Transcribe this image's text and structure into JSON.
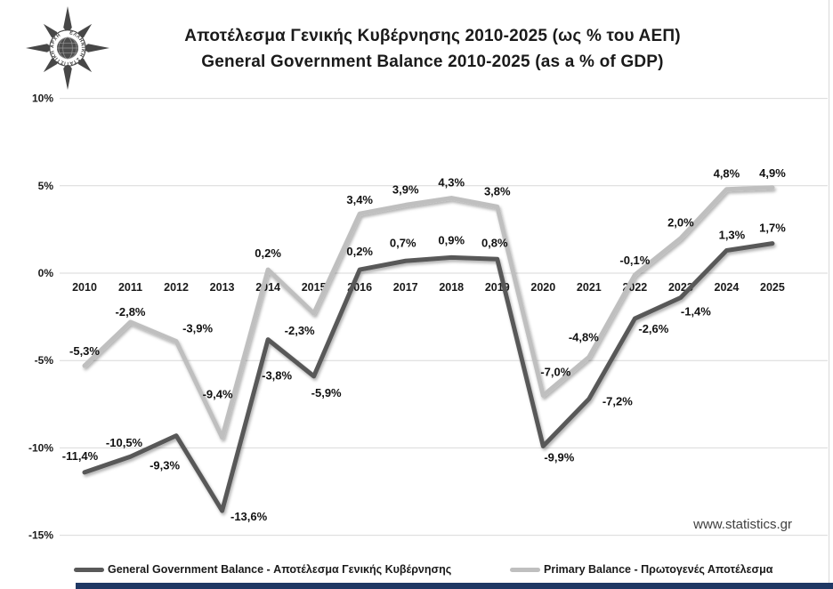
{
  "logo": {
    "ring_text": "ΕΛΛΗΝΙΚΗ ΣΤΑΤΙΣΤΙΚΗ ΑΡΧΗ"
  },
  "title": {
    "line1": "Αποτέλεσμα Γενικής Κυβέρνησης 2010-2025 (ως % του ΑΕΠ)",
    "line2": "General Government Balance 2010-2025 (as a % of GDP)"
  },
  "watermark": "www.statistics.gr",
  "chart_data": {
    "type": "line",
    "title": "Αποτέλεσμα Γενικής Κυβέρνησης 2010-2025 (ως % του ΑΕΠ) — General Government Balance 2010-2025 (as a % of GDP)",
    "categories": [
      "2010",
      "2011",
      "2012",
      "2013",
      "2014",
      "2015",
      "2016",
      "2017",
      "2018",
      "2019",
      "2020",
      "2021",
      "2022",
      "2023",
      "2024",
      "2025"
    ],
    "series": [
      {
        "name": "General Government Balance - Αποτέλεσμα Γενικής Κυβέρνησης",
        "color": "#595959",
        "values": [
          -11.4,
          -10.5,
          -9.3,
          -13.6,
          -3.8,
          -5.9,
          0.2,
          0.7,
          0.9,
          0.8,
          -9.9,
          -7.2,
          -2.6,
          -1.4,
          1.3,
          1.7
        ],
        "labels": [
          "-11,4%",
          "-10,5%",
          "-9,3%",
          "-13,6%",
          "-3,8%",
          "-5,9%",
          "0,2%",
          "0,7%",
          "0,9%",
          "0,8%",
          "-9,9%",
          "-7,2%",
          "-2,6%",
          "-1,4%",
          "1,3%",
          "1,7%"
        ]
      },
      {
        "name": "Primary Balance - Πρωτογενές Αποτέλεσμα",
        "color": "#BFBFBF",
        "values": [
          -5.3,
          -2.8,
          -3.9,
          -9.4,
          0.2,
          -2.3,
          3.4,
          3.9,
          4.3,
          3.8,
          -7.0,
          -4.8,
          -0.1,
          2.0,
          4.8,
          4.9
        ],
        "labels": [
          "-5,3%",
          "-2,8%",
          "-3,9%",
          "-9,4%",
          "0,2%",
          "-2,3%",
          "3,4%",
          "3,9%",
          "4,3%",
          "3,8%",
          "-7,0%",
          "-4,8%",
          "-0,1%",
          "2,0%",
          "4,8%",
          "4,9%"
        ]
      }
    ],
    "yticks": [
      "10%",
      "5%",
      "0%",
      "-5%",
      "-10%",
      "-15%"
    ],
    "ytick_values": [
      10,
      5,
      0,
      -5,
      -10,
      -15
    ],
    "ylim": [
      -15,
      10
    ],
    "xlabel": "",
    "ylabel": "",
    "grid": true,
    "legend_position": "bottom"
  }
}
